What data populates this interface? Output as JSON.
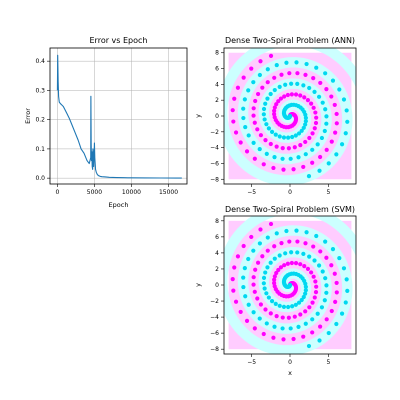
{
  "chart_data": [
    {
      "type": "line",
      "title": "Error vs Epoch",
      "xlabel": "Epoch",
      "ylabel": "Error",
      "xlim": [
        -1000,
        17500
      ],
      "ylim": [
        -0.02,
        0.445
      ],
      "xticks": [
        0,
        5000,
        10000,
        15000
      ],
      "yticks": [
        0.0,
        0.1,
        0.2,
        0.3,
        0.4
      ],
      "grid": true,
      "color": "#1f77b4",
      "series": [
        {
          "x": [
            0,
            40,
            100,
            160,
            250,
            400,
            600,
            800,
            1000,
            1300,
            1600,
            2000,
            2400,
            2800,
            3200,
            3600,
            4000,
            4300,
            4500,
            4520,
            4560,
            4600,
            4650,
            4700,
            4760,
            4800,
            4900,
            5000,
            5050,
            5100,
            5150,
            5250,
            5400,
            5600,
            5800,
            6000,
            6500,
            7000,
            8000,
            9000,
            10000,
            12000,
            14000,
            16000,
            16800
          ],
          "y": [
            0.3,
            0.42,
            0.33,
            0.28,
            0.26,
            0.255,
            0.25,
            0.245,
            0.235,
            0.22,
            0.205,
            0.18,
            0.155,
            0.13,
            0.1,
            0.085,
            0.06,
            0.05,
            0.07,
            0.28,
            0.12,
            0.06,
            0.09,
            0.04,
            0.03,
            0.1,
            0.04,
            0.12,
            0.07,
            0.05,
            0.03,
            0.02,
            0.012,
            0.008,
            0.006,
            0.005,
            0.004,
            0.003,
            0.002,
            0.0015,
            0.001,
            0.0008,
            0.0005,
            0.0003,
            0.0002
          ]
        }
      ]
    },
    {
      "type": "scatter",
      "title": "Dense Two-Spiral Problem (ANN)",
      "xlabel": "",
      "ylabel": "y",
      "xlim": [
        -8.6,
        8.6
      ],
      "ylim": [
        -8.6,
        8.6
      ],
      "xticks": [
        -5,
        0,
        5
      ],
      "yticks": [
        -8,
        -6,
        -4,
        -2,
        0,
        2,
        4,
        6,
        8
      ],
      "classes": [
        {
          "region_color": "#ffccff",
          "point_color": "#ff00ff"
        },
        {
          "region_color": "#ccffff",
          "point_color": "#00d8f0"
        }
      ],
      "spiral": {
        "turns": 2.95,
        "points_per_arm": 97,
        "max_radius": 8.0
      }
    },
    {
      "type": "scatter",
      "title": "Dense Two-Spiral Problem (SVM)",
      "xlabel": "x",
      "ylabel": "y",
      "xlim": [
        -8.6,
        8.6
      ],
      "ylim": [
        -8.6,
        8.6
      ],
      "xticks": [
        -5,
        0,
        5
      ],
      "yticks": [
        -8,
        -6,
        -4,
        -2,
        0,
        2,
        4,
        6,
        8
      ],
      "classes": [
        {
          "region_color": "#ffccff",
          "point_color": "#ff00ff"
        },
        {
          "region_color": "#ccffff",
          "point_color": "#00d8f0"
        }
      ],
      "spiral": {
        "turns": 2.95,
        "points_per_arm": 97,
        "max_radius": 8.0
      }
    }
  ]
}
